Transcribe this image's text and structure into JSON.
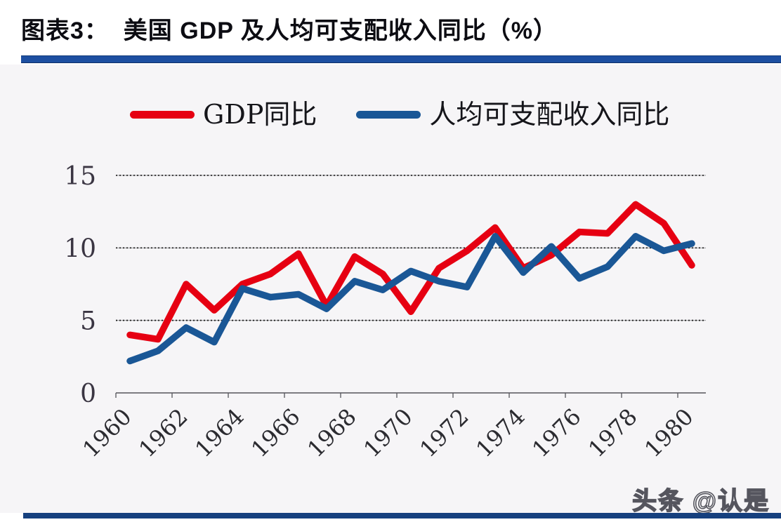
{
  "header": {
    "title": "图表3：  美国 GDP 及人均可支配收入同比（%）"
  },
  "watermark": "头条 @认是",
  "colors": {
    "header_bar": "#1d4fa1",
    "footer_bar": "#16407e",
    "gdp_line": "#e60012",
    "income_line": "#1a5796",
    "gridline": "#1a1a1a",
    "axis": "#55555a"
  },
  "chart_data": {
    "type": "line",
    "title": "美国 GDP 及人均可支配收入同比（%）",
    "x": [
      1960,
      1961,
      1962,
      1963,
      1964,
      1965,
      1966,
      1967,
      1968,
      1969,
      1970,
      1971,
      1972,
      1973,
      1974,
      1975,
      1976,
      1977,
      1978,
      1979,
      1980
    ],
    "series": [
      {
        "name": "GDP同比",
        "color": "#e60012",
        "values": [
          4.0,
          3.7,
          7.5,
          5.7,
          7.5,
          8.2,
          9.6,
          6.0,
          9.4,
          8.2,
          5.6,
          8.6,
          9.8,
          11.4,
          8.6,
          9.5,
          11.1,
          11.0,
          13.0,
          11.7,
          8.8
        ]
      },
      {
        "name": "人均可支配收入同比",
        "color": "#1a5796",
        "values": [
          2.2,
          2.9,
          4.5,
          3.5,
          7.2,
          6.6,
          6.8,
          5.8,
          7.7,
          7.1,
          8.4,
          7.7,
          7.3,
          10.8,
          8.3,
          10.1,
          7.9,
          8.7,
          10.8,
          9.8,
          10.3
        ]
      }
    ],
    "x_tick_labels": [
      "1960",
      "1962",
      "1964",
      "1966",
      "1968",
      "1970",
      "1972",
      "1974",
      "1976",
      "1978",
      "1980"
    ],
    "y_ticks": [
      0,
      5,
      10,
      15
    ],
    "ylim": [
      0,
      16
    ],
    "xlabel": "",
    "ylabel": "",
    "grid": "horizontal-dashed",
    "legend_position": "top"
  }
}
